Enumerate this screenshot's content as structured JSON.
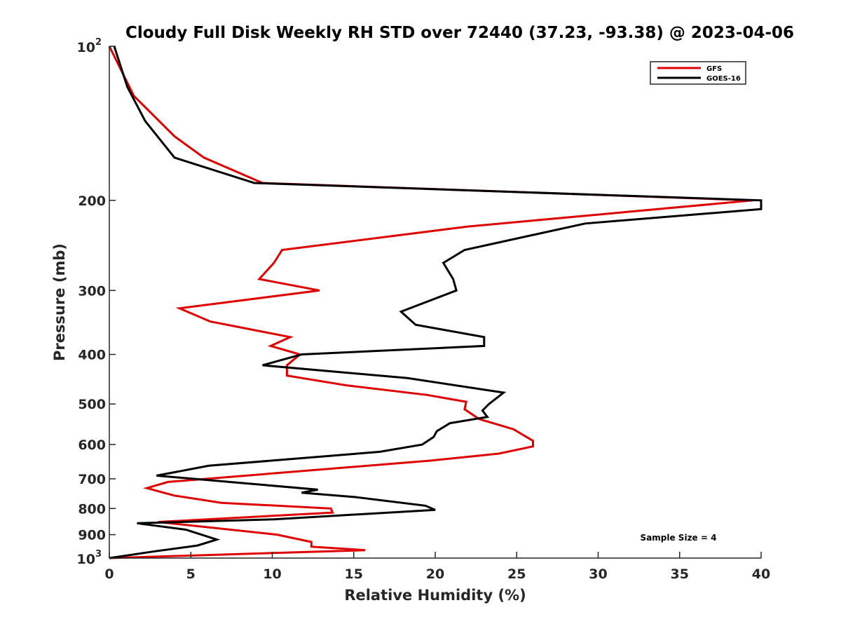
{
  "chart_data": {
    "type": "line",
    "title": "Cloudy Full Disk Weekly RH STD over 72440 (37.23, -93.38) @ 2023-04-06",
    "xlabel": "Relative Humidity (%)",
    "ylabel": "Pressure (mb)",
    "xlim": [
      0,
      40
    ],
    "ylim": [
      100,
      1000
    ],
    "y_scale": "log",
    "y_reversed": true,
    "grid": false,
    "legend_position": "top-right",
    "x_ticks": [
      "0",
      "5",
      "10",
      "15",
      "20",
      "25",
      "30",
      "35",
      "40"
    ],
    "y_ticks": [
      {
        "value": 100,
        "label": "10",
        "sup": "2"
      },
      {
        "value": 200,
        "label": "200"
      },
      {
        "value": 300,
        "label": "300"
      },
      {
        "value": 400,
        "label": "400"
      },
      {
        "value": 500,
        "label": "500"
      },
      {
        "value": 600,
        "label": "600"
      },
      {
        "value": 700,
        "label": "700"
      },
      {
        "value": 800,
        "label": "800"
      },
      {
        "value": 900,
        "label": "900"
      },
      {
        "value": 1000,
        "label": "10",
        "sup": "3"
      }
    ],
    "series": [
      {
        "name": "GFS",
        "color": "#e00000",
        "points": [
          [
            0.0,
            100
          ],
          [
            1.5,
            125
          ],
          [
            4.0,
            150
          ],
          [
            5.8,
            165
          ],
          [
            9.4,
            185
          ],
          [
            39.5,
            200
          ],
          [
            22.0,
            225
          ],
          [
            10.6,
            250
          ],
          [
            10.1,
            265
          ],
          [
            9.2,
            285
          ],
          [
            12.9,
            300
          ],
          [
            4.3,
            325
          ],
          [
            6.2,
            345
          ],
          [
            11.1,
            370
          ],
          [
            9.9,
            385
          ],
          [
            11.7,
            400
          ],
          [
            10.9,
            420
          ],
          [
            10.9,
            440
          ],
          [
            14.6,
            460
          ],
          [
            19.5,
            480
          ],
          [
            21.9,
            495
          ],
          [
            21.8,
            512
          ],
          [
            22.7,
            535
          ],
          [
            24.8,
            560
          ],
          [
            26.0,
            590
          ],
          [
            26.0,
            605
          ],
          [
            23.9,
            625
          ],
          [
            19.7,
            645
          ],
          [
            3.6,
            710
          ],
          [
            2.3,
            730
          ],
          [
            4.0,
            755
          ],
          [
            6.9,
            780
          ],
          [
            13.6,
            800
          ],
          [
            13.7,
            815
          ],
          [
            3.0,
            850
          ],
          [
            10.3,
            900
          ],
          [
            12.4,
            930
          ],
          [
            12.4,
            950
          ],
          [
            15.7,
            965
          ],
          [
            0.0,
            1000
          ]
        ]
      },
      {
        "name": "GOES-16",
        "color": "#000000",
        "points": [
          [
            0.3,
            100
          ],
          [
            1.1,
            120
          ],
          [
            2.2,
            140
          ],
          [
            4.0,
            165
          ],
          [
            8.9,
            185
          ],
          [
            40.0,
            200
          ],
          [
            40.0,
            208
          ],
          [
            29.2,
            222
          ],
          [
            21.8,
            250
          ],
          [
            20.5,
            265
          ],
          [
            21.1,
            285
          ],
          [
            21.3,
            300
          ],
          [
            17.9,
            330
          ],
          [
            18.8,
            350
          ],
          [
            23.0,
            370
          ],
          [
            23.0,
            385
          ],
          [
            11.8,
            400
          ],
          [
            9.4,
            420
          ],
          [
            18.3,
            445
          ],
          [
            24.2,
            475
          ],
          [
            23.3,
            500
          ],
          [
            22.9,
            515
          ],
          [
            23.2,
            530
          ],
          [
            20.9,
            545
          ],
          [
            20.1,
            565
          ],
          [
            19.9,
            580
          ],
          [
            19.2,
            600
          ],
          [
            16.6,
            620
          ],
          [
            6.1,
            660
          ],
          [
            2.9,
            690
          ],
          [
            9.6,
            720
          ],
          [
            12.8,
            735
          ],
          [
            11.8,
            745
          ],
          [
            15.1,
            760
          ],
          [
            19.4,
            790
          ],
          [
            20.0,
            805
          ],
          [
            10.1,
            840
          ],
          [
            1.7,
            855
          ],
          [
            4.7,
            880
          ],
          [
            6.6,
            920
          ],
          [
            5.4,
            945
          ],
          [
            2.8,
            970
          ],
          [
            0.0,
            1000
          ]
        ]
      }
    ],
    "annotation": "Sample Size = 4"
  }
}
